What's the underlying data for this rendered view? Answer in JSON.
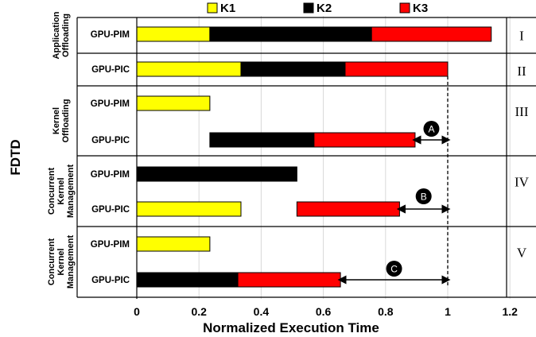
{
  "chart_data": {
    "type": "bar",
    "orientation": "horizontal",
    "stacked": true,
    "xlabel": "Normalized Execution Time",
    "ylabel": "FDTD",
    "xlim": [
      0,
      1.2
    ],
    "xticks": [
      "0",
      "0.2",
      "0.4",
      "0.6",
      "0.8",
      "1",
      "1.2"
    ],
    "xtick_values": [
      0,
      0.2,
      0.4,
      0.6,
      0.8,
      1,
      1.2
    ],
    "grid": "vertical",
    "legend_position": "top",
    "legend": [
      {
        "name": "K1",
        "color": "#ffff00"
      },
      {
        "name": "K2",
        "color": "#000000"
      },
      {
        "name": "K3",
        "color": "#ff0000"
      }
    ],
    "reference_line": 1,
    "groups": [
      {
        "label": [
          "Application",
          "Offloading"
        ],
        "roman": "I",
        "rows": [
          {
            "label": "GPU-PIM",
            "segments": [
              {
                "series": "K1",
                "start": 0,
                "end": 0.235
              },
              {
                "series": "K2",
                "start": 0.235,
                "end": 0.755
              },
              {
                "series": "K3",
                "start": 0.755,
                "end": 1.14
              }
            ]
          }
        ]
      },
      {
        "label": [],
        "roman": "II",
        "rows": [
          {
            "label": "GPU-PIC",
            "segments": [
              {
                "series": "K1",
                "start": 0,
                "end": 0.335
              },
              {
                "series": "K2",
                "start": 0.335,
                "end": 0.67
              },
              {
                "series": "K3",
                "start": 0.67,
                "end": 1.0
              }
            ]
          }
        ]
      },
      {
        "label": [
          "Kernel",
          "Offloading"
        ],
        "roman": "III",
        "rows": [
          {
            "label": "GPU-PIM",
            "segments": [
              {
                "series": "K1",
                "start": 0,
                "end": 0.235
              }
            ]
          },
          {
            "label": "GPU-PIC",
            "segments": [
              {
                "series": "K2",
                "start": 0.235,
                "end": 0.57
              },
              {
                "series": "K3",
                "start": 0.57,
                "end": 0.895
              }
            ]
          }
        ]
      },
      {
        "label": [
          "Concurrent",
          "Kernel",
          "Management"
        ],
        "roman": "IV",
        "rows": [
          {
            "label": "GPU-PIM",
            "segments": [
              {
                "series": "K2",
                "start": 0,
                "end": 0.515
              }
            ]
          },
          {
            "label": "GPU-PIC",
            "segments": [
              {
                "series": "K1",
                "start": 0,
                "end": 0.335
              },
              {
                "series": "K3",
                "start": 0.515,
                "end": 0.845
              }
            ]
          }
        ]
      },
      {
        "label": [
          "Concurrent",
          "Kernel",
          "Management"
        ],
        "roman": "V",
        "rows": [
          {
            "label": "GPU-PIM",
            "segments": [
              {
                "series": "K1",
                "start": 0,
                "end": 0.235
              }
            ]
          },
          {
            "label": "GPU-PIC",
            "segments": [
              {
                "series": "K2",
                "start": 0,
                "end": 0.325
              },
              {
                "series": "K3",
                "start": 0.325,
                "end": 0.655
              }
            ]
          }
        ]
      }
    ],
    "annotations": [
      {
        "label": "A",
        "from": 0.895,
        "to": 1.0
      },
      {
        "label": "B",
        "from": 0.845,
        "to": 1.0
      },
      {
        "label": "C",
        "from": 0.655,
        "to": 1.0
      }
    ]
  }
}
